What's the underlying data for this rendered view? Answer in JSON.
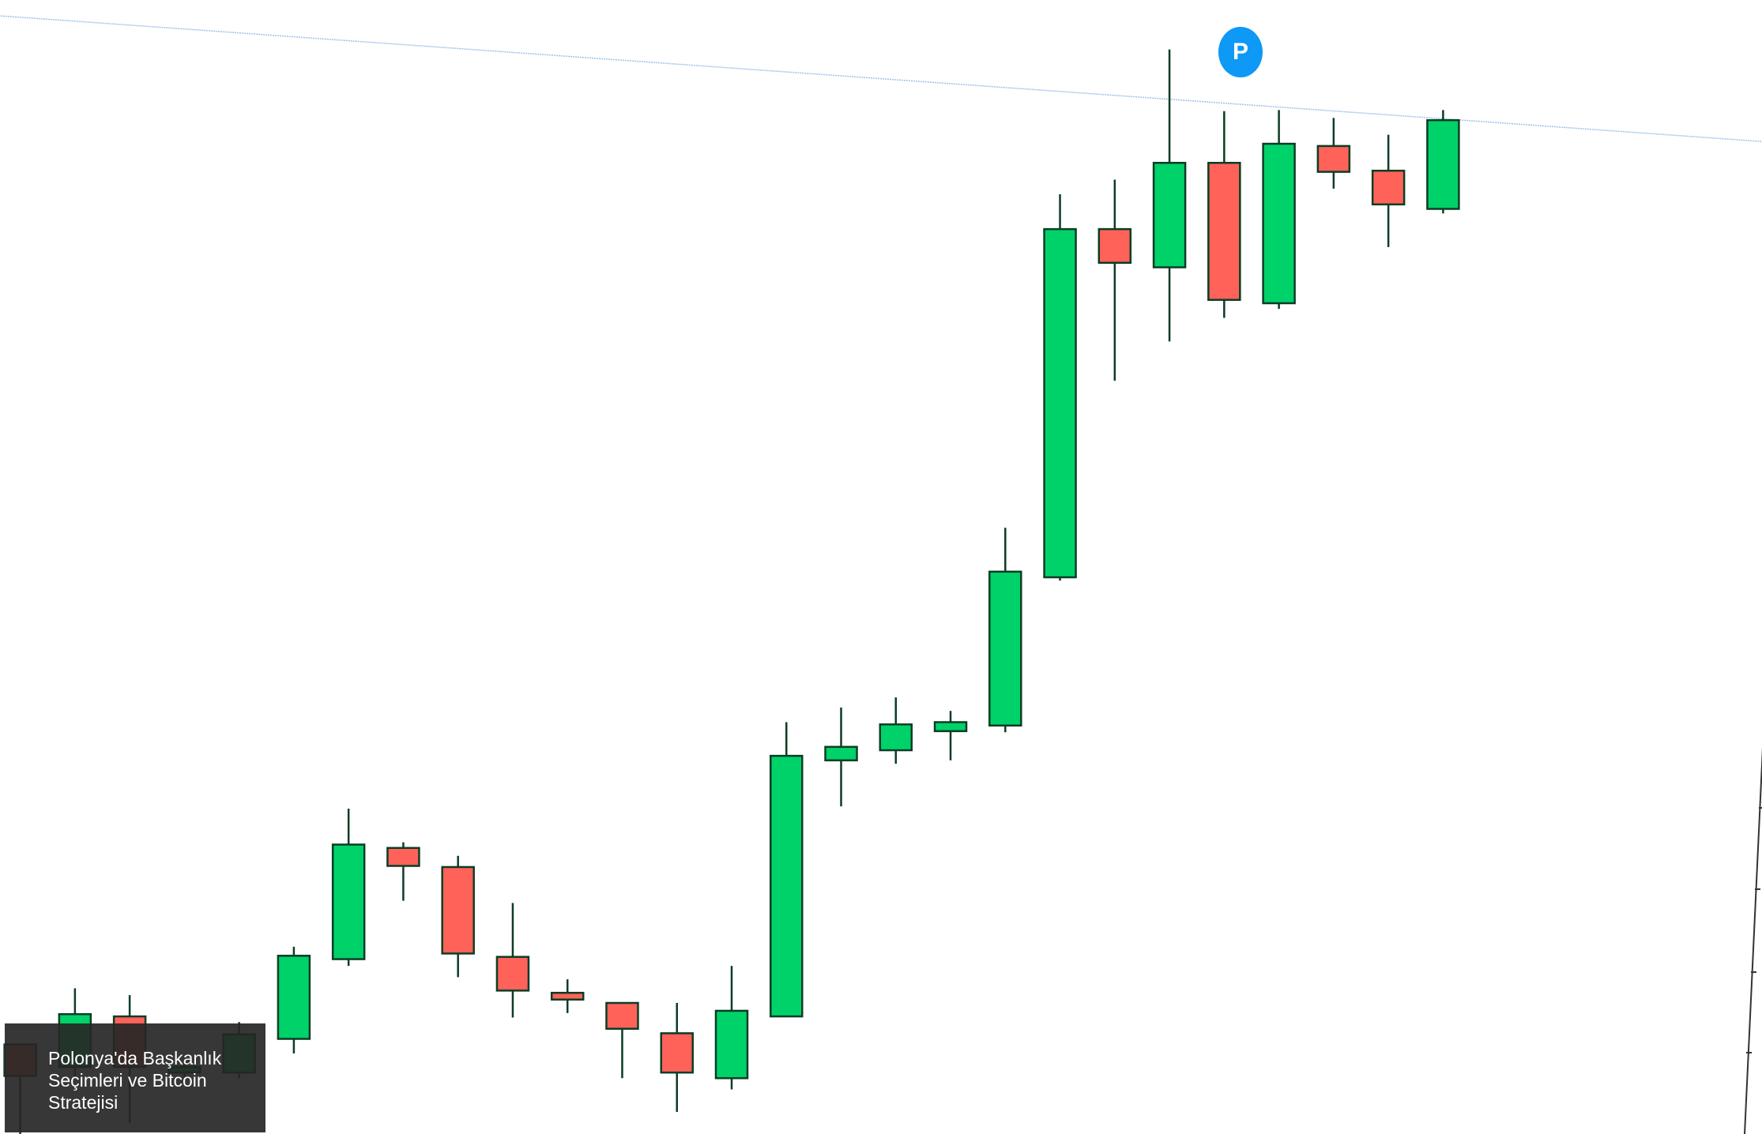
{
  "chart_data": {
    "type": "candlestick",
    "title": "",
    "xlabel": "",
    "ylabel": "",
    "units": "relative price index (no axis labels visible)",
    "colors": {
      "up": "#00d26a",
      "down": "#ff6259",
      "wick": "#0b3d24",
      "trendline": "#9ec3ea",
      "marker": "#0d99f5"
    },
    "candles": [
      {
        "o": 8.0,
        "h": 8.0,
        "l": 0.0,
        "c": 5.2
      },
      {
        "o": 6.0,
        "h": 13.0,
        "l": 5.0,
        "c": 10.7
      },
      {
        "o": 10.5,
        "h": 12.4,
        "l": 1.0,
        "c": 6.0
      },
      {
        "o": 5.5,
        "h": 6.5,
        "l": 4.5,
        "c": 6.0
      },
      {
        "o": 5.5,
        "h": 10.0,
        "l": 5.0,
        "c": 8.9
      },
      {
        "o": 8.5,
        "h": 16.7,
        "l": 7.2,
        "c": 15.9
      },
      {
        "o": 15.6,
        "h": 29.0,
        "l": 15.0,
        "c": 25.8
      },
      {
        "o": 25.5,
        "h": 26.0,
        "l": 20.8,
        "c": 23.9
      },
      {
        "o": 23.8,
        "h": 24.8,
        "l": 14.0,
        "c": 16.1
      },
      {
        "o": 15.8,
        "h": 20.6,
        "l": 10.4,
        "c": 12.8
      },
      {
        "o": 12.6,
        "h": 13.8,
        "l": 10.8,
        "c": 12.0
      },
      {
        "o": 11.7,
        "h": 11.7,
        "l": 5.0,
        "c": 9.4
      },
      {
        "o": 9.0,
        "h": 11.7,
        "l": 2.0,
        "c": 5.5
      },
      {
        "o": 5.0,
        "h": 15.0,
        "l": 4.0,
        "c": 11.0
      },
      {
        "o": 10.5,
        "h": 36.7,
        "l": 10.5,
        "c": 33.7
      },
      {
        "o": 33.3,
        "h": 38.0,
        "l": 29.2,
        "c": 34.5
      },
      {
        "o": 34.2,
        "h": 38.9,
        "l": 33.0,
        "c": 36.5
      },
      {
        "o": 35.9,
        "h": 37.7,
        "l": 33.3,
        "c": 36.7
      },
      {
        "o": 36.4,
        "h": 54.0,
        "l": 35.8,
        "c": 50.1
      },
      {
        "o": 49.6,
        "h": 83.7,
        "l": 49.3,
        "c": 80.6
      },
      {
        "o": 80.6,
        "h": 85.0,
        "l": 67.1,
        "c": 77.6
      },
      {
        "o": 77.2,
        "h": 96.6,
        "l": 70.6,
        "c": 86.5
      },
      {
        "o": 86.5,
        "h": 91.1,
        "l": 72.7,
        "c": 74.3
      },
      {
        "o": 74.0,
        "h": 91.2,
        "l": 73.5,
        "c": 88.2
      },
      {
        "o": 88.0,
        "h": 90.5,
        "l": 84.2,
        "c": 85.7
      },
      {
        "o": 85.8,
        "h": 89.0,
        "l": 79.0,
        "c": 82.8
      },
      {
        "o": 82.4,
        "h": 91.2,
        "l": 82.0,
        "c": 90.3
      }
    ],
    "annotations": [
      {
        "type": "marker",
        "label": "P",
        "candle_index": 22
      }
    ],
    "trendline": {
      "from_index": -0.4,
      "from_price": 99.6,
      "to_index": 32.4,
      "to_price": 88.2
    }
  },
  "overlay": {
    "title": "Polonya'da Başkanlık Seçimleri ve Bitcoin Stratejisi"
  },
  "marker": {
    "label": "P"
  }
}
